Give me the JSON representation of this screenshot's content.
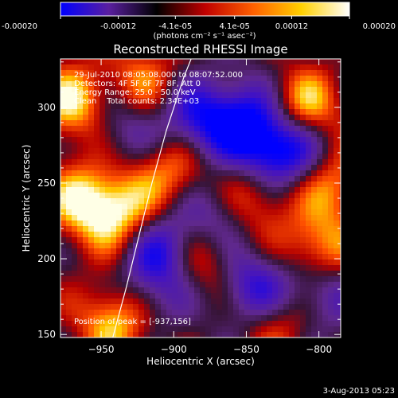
{
  "colorbar": {
    "tick_labels": [
      "-0.00020",
      "-0.00012",
      "-4.1e-05",
      "4.1e-05",
      "0.00012",
      "0.00020"
    ],
    "tick_values": [
      -0.0002,
      -0.00012,
      -4.1e-05,
      4.1e-05,
      0.00012,
      0.0002
    ],
    "units_label": "(photons cm⁻² s⁻¹ asec⁻²)",
    "range": [
      -0.0002,
      0.0002
    ],
    "colors": [
      "#0000ff",
      "#5a1fa0",
      "#000000",
      "#c00000",
      "#ff6000",
      "#ffd000",
      "#ffffff"
    ]
  },
  "chart_data": {
    "type": "heatmap",
    "title": "Reconstructed RHESSI Image",
    "xlabel": "Heliocentric X (arcsec)",
    "ylabel": "Heliocentric Y (arcsec)",
    "xlim": [
      -978,
      -785
    ],
    "ylim": [
      148,
      332
    ],
    "xticks": [
      -950,
      -900,
      -850,
      -800
    ],
    "yticks": [
      150,
      200,
      250,
      300
    ],
    "xtick_labels": [
      "−950",
      "−900",
      "−850",
      "−800"
    ],
    "ytick_labels": [
      "150",
      "200",
      "250",
      "300"
    ],
    "info_lines": [
      "29-Jul-2010 08:05:08.000 to 08:07:52.000",
      "Detectors: 4F 5F 6F 7F 8F, Att 0",
      "Energy Range: 25.0 - 50.0 keV",
      "Clean    Total counts: 2.34E+03"
    ],
    "peak_label": "Position of peak = [-937,156]",
    "peak": [
      -937,
      156
    ],
    "limb_curve": [
      [
        -942,
        148
      ],
      [
        -933,
        180
      ],
      [
        -924,
        215
      ],
      [
        -915,
        250
      ],
      [
        -905,
        285
      ],
      [
        -893,
        320
      ],
      [
        -888,
        332
      ]
    ],
    "blobs": [
      {
        "x": -968,
        "y": 302,
        "v": 1.0
      },
      {
        "x": -962,
        "y": 238,
        "v": 0.9
      },
      {
        "x": -940,
        "y": 160,
        "v": 1.0
      },
      {
        "x": -937,
        "y": 230,
        "v": 0.8
      },
      {
        "x": -900,
        "y": 258,
        "v": 0.7
      },
      {
        "x": -880,
        "y": 200,
        "v": 0.7
      },
      {
        "x": -845,
        "y": 240,
        "v": 0.7
      },
      {
        "x": -810,
        "y": 300,
        "v": 0.9
      },
      {
        "x": -800,
        "y": 205,
        "v": 0.9
      },
      {
        "x": -790,
        "y": 250,
        "v": 0.7
      },
      {
        "x": -922,
        "y": 318,
        "v": 0.6
      },
      {
        "x": -830,
        "y": 160,
        "v": 0.6
      },
      {
        "x": -905,
        "y": 205,
        "v": -0.9
      },
      {
        "x": -885,
        "y": 290,
        "v": -0.8
      },
      {
        "x": -855,
        "y": 295,
        "v": -0.7
      },
      {
        "x": -835,
        "y": 275,
        "v": -1.0
      },
      {
        "x": -845,
        "y": 180,
        "v": -0.9
      },
      {
        "x": -800,
        "y": 180,
        "v": -0.7
      },
      {
        "x": -940,
        "y": 290,
        "v": -0.5
      },
      {
        "x": -920,
        "y": 175,
        "v": -0.5
      },
      {
        "x": -870,
        "y": 230,
        "v": -0.6
      },
      {
        "x": -815,
        "y": 270,
        "v": -0.6
      }
    ]
  },
  "footer": {
    "timestamp": "3-Aug-2013 05:23"
  }
}
